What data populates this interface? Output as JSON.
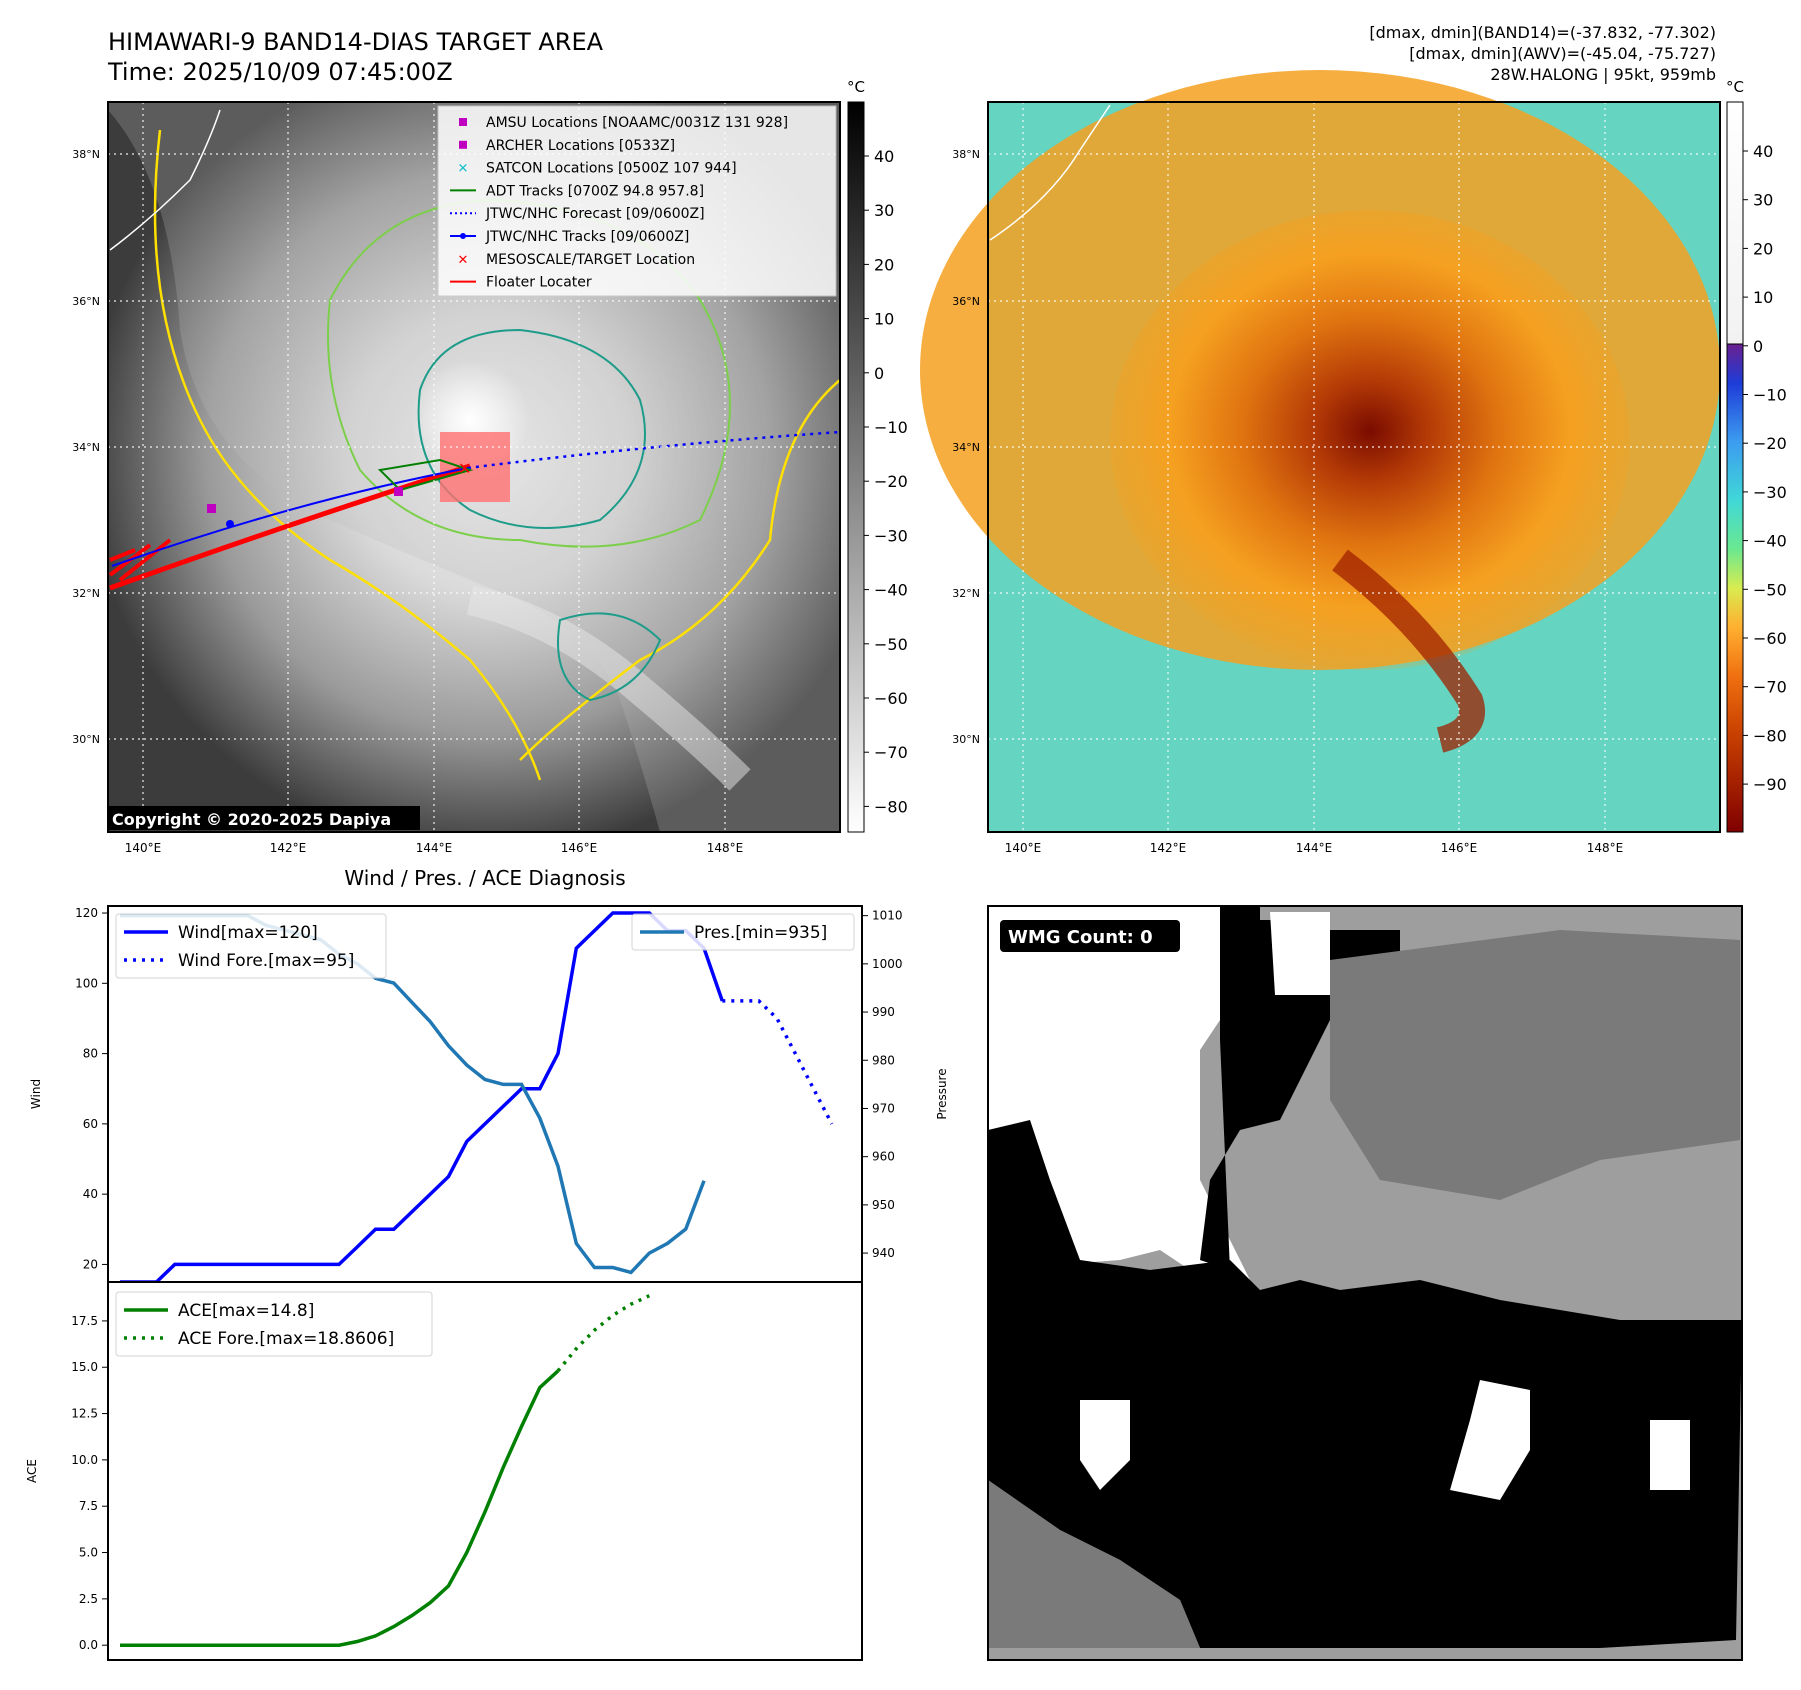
{
  "header": {
    "title_line1": "HIMAWARI-9 BAND14-DIAS TARGET AREA",
    "title_line2": "Time: 2025/10/09 07:45:00Z",
    "right_line1": "[dmax, dmin](BAND14)=(-37.832, -77.302)",
    "right_line2": "[dmax, dmin](AWV)=(-45.04, -75.727)",
    "right_line3": "28W.HALONG | 95kt, 959mb"
  },
  "map_axes": {
    "lat_labels": [
      "38°N",
      "36°N",
      "34°N",
      "32°N",
      "30°N"
    ],
    "lon_labels": [
      "140°E",
      "142°E",
      "144°E",
      "146°E",
      "148°E"
    ]
  },
  "ir_panel": {
    "legend": [
      {
        "label": "AMSU Locations [NOAAMC/0031Z 131 928]",
        "color": "#c000c0",
        "marker": "square"
      },
      {
        "label": "ARCHER Locations [0533Z]",
        "color": "#c000c0",
        "marker": "square"
      },
      {
        "label": "SATCON Locations [0500Z 107 944]",
        "color": "#17becf",
        "marker": "x"
      },
      {
        "label": "ADT Tracks [0700Z 94.8 957.8]",
        "color": "#008000",
        "marker": "line"
      },
      {
        "label": "JTWC/NHC Forecast [09/0600Z]",
        "color": "#0000ff",
        "marker": "dotted"
      },
      {
        "label": "JTWC/NHC Tracks [09/0600Z]",
        "color": "#0000ff",
        "marker": "line-dot"
      },
      {
        "label": "MESOSCALE/TARGET Location",
        "color": "#ff0000",
        "marker": "x"
      },
      {
        "label": "Floater Locater",
        "color": "#ff0000",
        "marker": "line"
      }
    ],
    "copyright": "Copyright © 2020-2025 Dapiya",
    "colorbar_unit": "°C",
    "colorbar_ticks": [
      "40",
      "30",
      "20",
      "10",
      "0",
      "−10",
      "−20",
      "−30",
      "−40",
      "−50",
      "−60",
      "−70",
      "−80"
    ]
  },
  "awv_panel": {
    "colorbar_unit": "°C",
    "colorbar_ticks": [
      "40",
      "30",
      "20",
      "10",
      "0",
      "−10",
      "−20",
      "−30",
      "−40",
      "−50",
      "−60",
      "−70",
      "−80",
      "−90"
    ]
  },
  "chart_data": [
    {
      "type": "line",
      "title": "Wind / Pres. / ACE Diagnosis",
      "ylabel": "Wind",
      "y2label": "Pressure",
      "ylim": [
        15,
        122
      ],
      "y2lim": [
        934,
        1012
      ],
      "yticks": [
        20,
        40,
        60,
        80,
        100,
        120
      ],
      "y2ticks": [
        940,
        950,
        960,
        970,
        980,
        990,
        1000,
        1010
      ],
      "x": [
        0,
        1,
        2,
        3,
        4,
        5,
        6,
        7,
        8,
        9,
        10,
        11,
        12,
        13,
        14,
        15,
        16,
        17,
        18,
        19,
        20,
        21,
        22,
        23,
        24,
        25,
        26,
        27,
        28,
        29,
        30
      ],
      "series": [
        {
          "name": "Wind[max=120]",
          "axis": "left",
          "color": "#0000ff",
          "style": "solid",
          "points": [
            [
              0,
              15
            ],
            [
              2,
              15
            ],
            [
              3,
              20
            ],
            [
              5,
              20
            ],
            [
              7,
              20
            ],
            [
              9,
              20
            ],
            [
              10,
              20
            ],
            [
              12,
              20
            ],
            [
              13,
              25
            ],
            [
              14,
              30
            ],
            [
              15,
              30
            ],
            [
              17,
              40
            ],
            [
              18,
              45
            ],
            [
              19,
              55
            ],
            [
              20,
              60
            ],
            [
              21,
              65
            ],
            [
              22,
              70
            ],
            [
              23,
              70
            ],
            [
              24,
              80
            ],
            [
              25,
              110
            ],
            [
              26,
              115
            ],
            [
              27,
              120
            ],
            [
              28,
              120
            ],
            [
              29,
              120
            ],
            [
              30,
              115
            ],
            [
              31,
              115
            ],
            [
              32,
              110
            ],
            [
              33,
              95
            ]
          ]
        },
        {
          "name": "Wind Fore.[max=95]",
          "axis": "left",
          "color": "#0000ff",
          "style": "dotted",
          "points": [
            [
              33,
              95
            ],
            [
              35,
              95
            ],
            [
              36,
              90
            ],
            [
              37,
              80
            ],
            [
              38,
              70
            ],
            [
              39,
              60
            ]
          ]
        },
        {
          "name": "Pres.[min=935]",
          "axis": "right",
          "color": "#1f77b4",
          "style": "solid",
          "points": [
            [
              0,
              1010
            ],
            [
              3,
              1010
            ],
            [
              5,
              1010
            ],
            [
              7,
              1010
            ],
            [
              8,
              1008
            ],
            [
              9,
              1007
            ],
            [
              10,
              1006
            ],
            [
              11,
              1005
            ],
            [
              12,
              1002
            ],
            [
              13,
              1000
            ],
            [
              14,
              997
            ],
            [
              15,
              996
            ],
            [
              16,
              992
            ],
            [
              17,
              988
            ],
            [
              18,
              983
            ],
            [
              19,
              979
            ],
            [
              20,
              976
            ],
            [
              21,
              975
            ],
            [
              22,
              975
            ],
            [
              23,
              968
            ],
            [
              24,
              958
            ],
            [
              25,
              942
            ],
            [
              26,
              937
            ],
            [
              27,
              937
            ],
            [
              28,
              936
            ],
            [
              29,
              940
            ],
            [
              30,
              942
            ],
            [
              31,
              945
            ],
            [
              32,
              955
            ]
          ]
        }
      ]
    },
    {
      "type": "line",
      "ylabel": "ACE",
      "ylim": [
        -0.8,
        19.6
      ],
      "yticks": [
        0.0,
        2.5,
        5.0,
        7.5,
        10.0,
        12.5,
        15.0,
        17.5
      ],
      "ytick_labels": [
        "0.0",
        "2.5",
        "5.0",
        "7.5",
        "10.0",
        "12.5",
        "15.0",
        "17.5"
      ],
      "series": [
        {
          "name": "ACE[max=14.8]",
          "color": "#008000",
          "style": "solid",
          "points": [
            [
              0,
              0
            ],
            [
              12,
              0
            ],
            [
              13,
              0.2
            ],
            [
              14,
              0.5
            ],
            [
              15,
              1.0
            ],
            [
              16,
              1.6
            ],
            [
              17,
              2.3
            ],
            [
              18,
              3.2
            ],
            [
              19,
              5.0
            ],
            [
              20,
              7.2
            ],
            [
              21,
              9.6
            ],
            [
              22,
              11.8
            ],
            [
              23,
              13.9
            ],
            [
              24,
              14.8
            ]
          ]
        },
        {
          "name": "ACE Fore.[max=18.8606]",
          "color": "#008000",
          "style": "dotted",
          "points": [
            [
              24,
              14.8
            ],
            [
              25,
              16.0
            ],
            [
              26,
              17.0
            ],
            [
              27,
              17.8
            ],
            [
              28,
              18.4
            ],
            [
              29,
              18.86
            ]
          ]
        }
      ]
    }
  ],
  "wmg_panel": {
    "badge": "WMG Count: 0"
  }
}
